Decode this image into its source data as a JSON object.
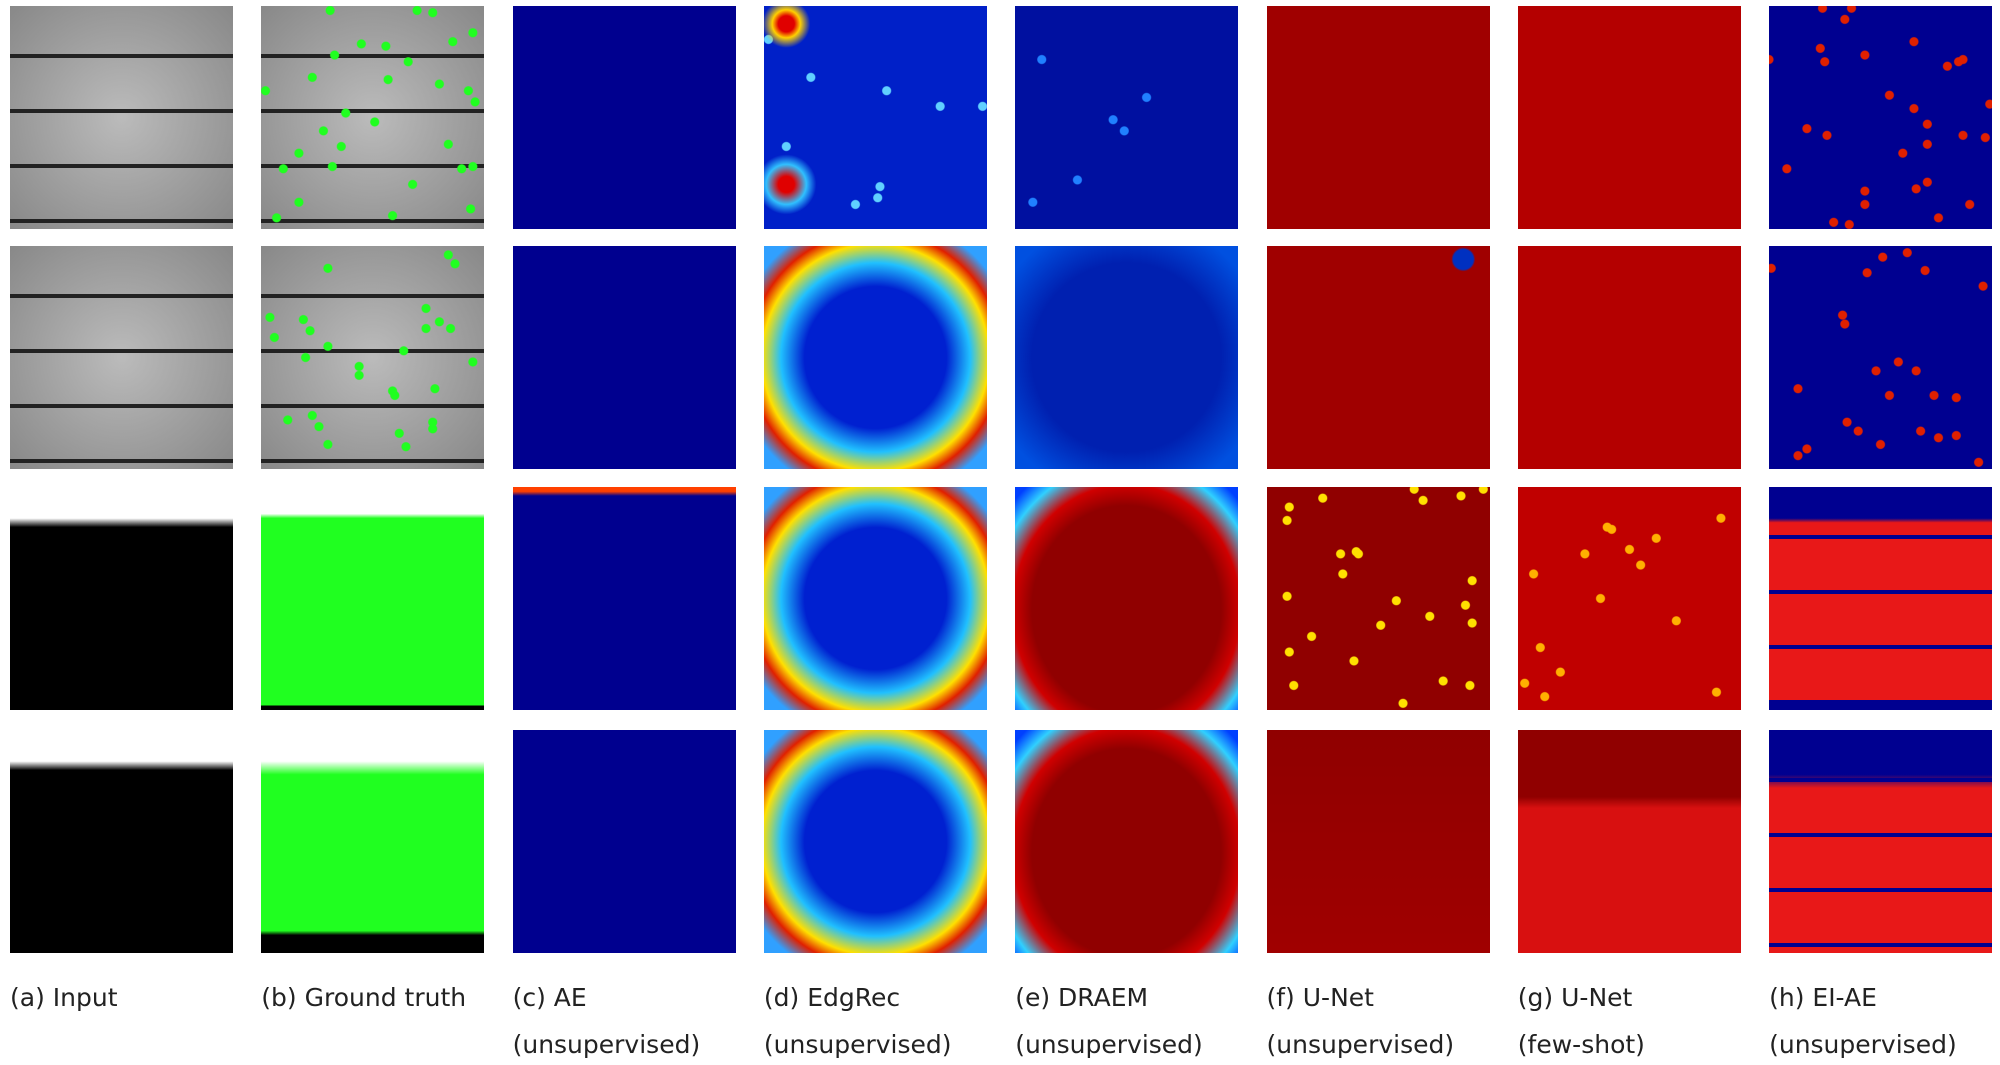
{
  "columns": [
    {
      "label": "(a) Input"
    },
    {
      "label": "(b) Ground truth"
    },
    {
      "label": "(c) AE",
      "note": "(unsupervised)"
    },
    {
      "label": "(d) EdgRec",
      "note": "(unsupervised)"
    },
    {
      "label": "(e) DRAEM",
      "note": "(unsupervised)"
    },
    {
      "label": "(f) U-Net",
      "note": "(unsupervised)"
    },
    {
      "label": "(g) U-Net",
      "note": "(few-shot)"
    },
    {
      "label": "(h) EI-AE",
      "note": "(unsupervised)"
    }
  ]
}
